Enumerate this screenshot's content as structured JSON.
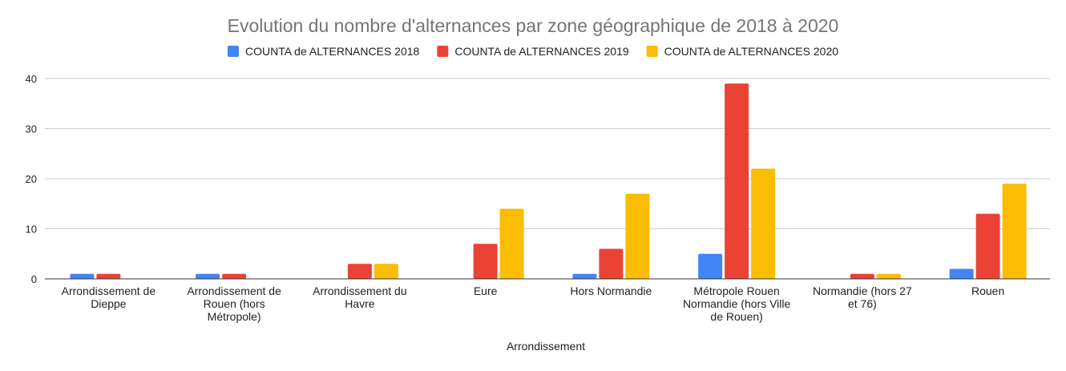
{
  "chart_data": {
    "type": "bar",
    "title": "Evolution du nombre d'alternances par zone géographique de 2018 à 2020",
    "xlabel": "Arrondissement",
    "ylabel": "",
    "ylim": [
      0,
      40
    ],
    "yticks": [
      0,
      10,
      20,
      30,
      40
    ],
    "grid": true,
    "legend_position": "top",
    "categories": [
      "Arrondissement de Dieppe",
      "Arrondissement de Rouen (hors Métropole)",
      "Arrondissement du Havre",
      "Eure",
      "Hors Normandie",
      "Métropole Rouen Normandie (hors Ville de Rouen)",
      "Normandie (hors 27 et 76)",
      "Rouen"
    ],
    "category_label_lines": [
      [
        "Arrondissement de",
        "Dieppe"
      ],
      [
        "Arrondissement de",
        "Rouen (hors",
        "Métropole)"
      ],
      [
        "Arrondissement du",
        "Havre"
      ],
      [
        "Eure"
      ],
      [
        "Hors Normandie"
      ],
      [
        "Métropole Rouen",
        "Normandie (hors Ville",
        "de Rouen)"
      ],
      [
        "Normandie (hors 27",
        "et 76)"
      ],
      [
        "Rouen"
      ]
    ],
    "series": [
      {
        "name": "COUNTA de ALTERNANCES 2018",
        "color": "#4285f4",
        "values": [
          1,
          1,
          0,
          0,
          1,
          5,
          0,
          2
        ]
      },
      {
        "name": "COUNTA de ALTERNANCES 2019",
        "color": "#ea4335",
        "values": [
          1,
          1,
          3,
          7,
          6,
          39,
          1,
          13
        ]
      },
      {
        "name": "COUNTA de ALTERNANCES 2020",
        "color": "#fbbc04",
        "values": [
          0,
          0,
          3,
          14,
          17,
          22,
          1,
          19
        ]
      }
    ]
  }
}
